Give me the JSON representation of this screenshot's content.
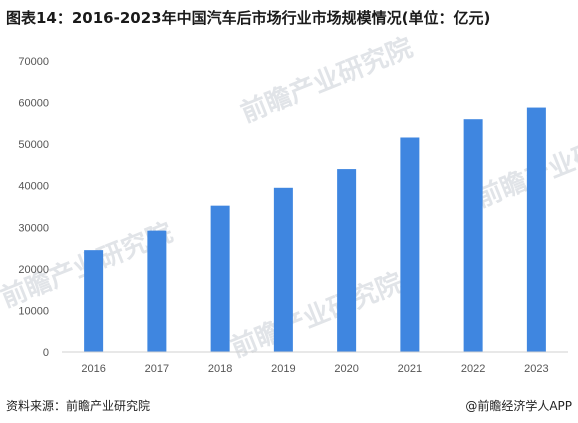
{
  "chart_data": {
    "type": "bar",
    "title": "图表14：2016-2023年中国汽车后市场行业市场规模情况(单位：亿元)",
    "categories": [
      "2016",
      "2017",
      "2018",
      "2019",
      "2020",
      "2021",
      "2022",
      "2023"
    ],
    "values": [
      24500,
      29200,
      35200,
      39500,
      44000,
      51600,
      56000,
      58800
    ],
    "ylim": [
      0,
      70000
    ],
    "yticks": [
      "0",
      "10000",
      "20000",
      "30000",
      "40000",
      "50000",
      "60000",
      "70000"
    ],
    "grid": false,
    "bar_color": "#3f86e0",
    "xlabel": "",
    "ylabel": ""
  },
  "footer": {
    "source": "资料来源：前瞻产业研究院",
    "credit": "@前瞻经济学人APP"
  },
  "watermark_text": "前瞻产业研究院"
}
